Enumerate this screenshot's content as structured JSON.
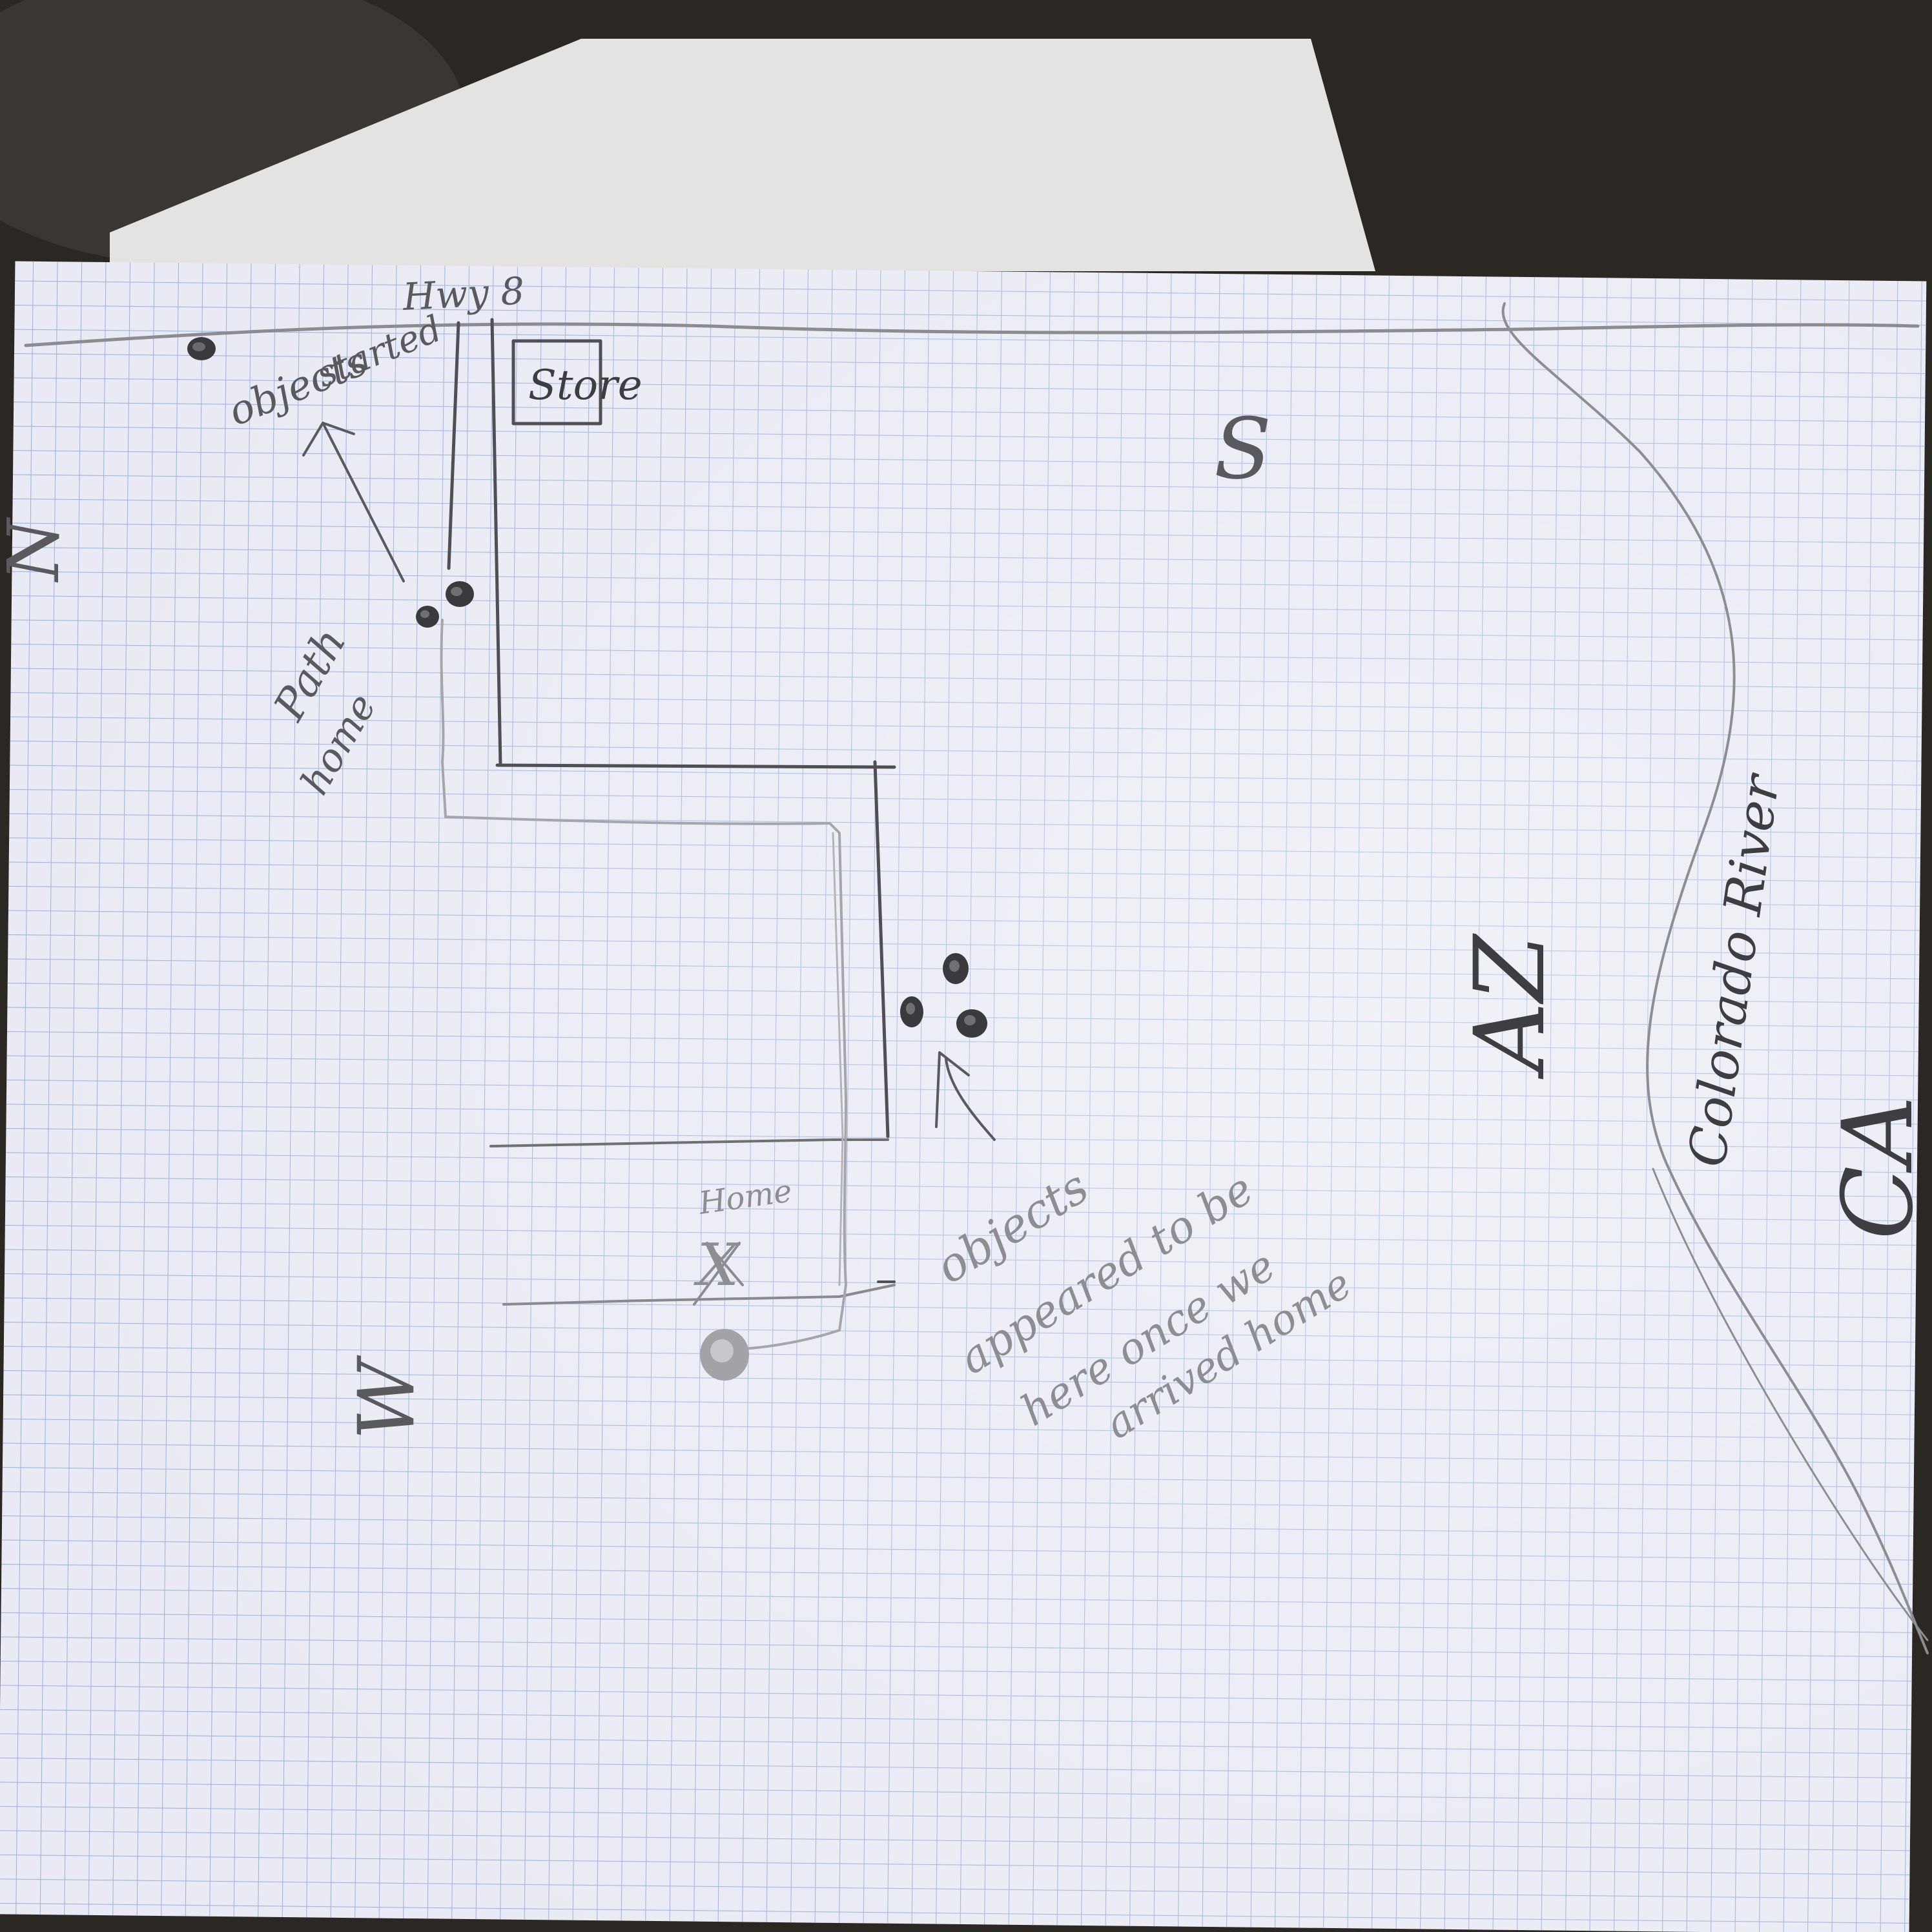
{
  "map": {
    "road_label": "Hwy 8",
    "store_label": "Store",
    "home_label": "Home",
    "home_marker": "X",
    "river_label": "Colorado River",
    "state_az": "AZ",
    "state_ca": "CA",
    "compass": {
      "north": "N",
      "south": "S",
      "west": "W"
    },
    "notes": {
      "objects_started_line1": "objects",
      "objects_started_line2": "started",
      "path_home_line1": "Path",
      "path_home_line2": "home",
      "appeared_line1": "objects",
      "appeared_line2": "appeared to be",
      "appeared_line3": "here once we",
      "appeared_line4": "arrived home"
    },
    "colors": {
      "paper": "#e9eaf3",
      "grid": "#9bb4e0",
      "pencil": "#5a5a5e",
      "background": "#2a2723"
    }
  }
}
